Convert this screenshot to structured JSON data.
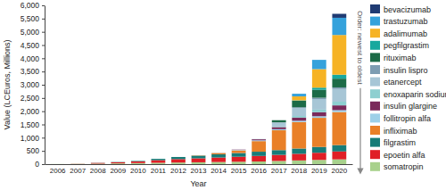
{
  "chart_data": {
    "type": "bar",
    "stacked": true,
    "grid": false,
    "legend": "right",
    "x_label": "Year",
    "y_label": "Value (LCEuros, Millions)",
    "annotation": "Order: newest to oldest",
    "categories": [
      "2006",
      "2007",
      "2008",
      "2009",
      "2010",
      "2011",
      "2012",
      "2013",
      "2014",
      "2015",
      "2016",
      "2017",
      "2018",
      "2019",
      "2020"
    ],
    "ylim": [
      0,
      6000
    ],
    "yticks": [
      0,
      500,
      {
        "value": 1000,
        "label": "1,000"
      },
      {
        "value": 1500,
        "label": "1,500"
      },
      {
        "value": 2000,
        "label": "2,000"
      },
      {
        "value": 2500,
        "label": "2,500"
      },
      {
        "value": 3000,
        "label": "3,000"
      },
      {
        "value": 3500,
        "label": "3,500"
      },
      {
        "value": 4000,
        "label": "4,000"
      },
      {
        "value": 4500,
        "label": "4,500"
      },
      {
        "value": 5000,
        "label": "5,000"
      },
      {
        "value": 5500,
        "label": "5,500"
      },
      {
        "value": 6000,
        "label": "6,000"
      }
    ],
    "series": [
      {
        "name": "bevacizumab",
        "color": "#1f3b73",
        "values": [
          0,
          0,
          0,
          0,
          0,
          0,
          0,
          0,
          0,
          0,
          0,
          0,
          0,
          0,
          150
        ]
      },
      {
        "name": "trastuzumab",
        "color": "#35a2dc",
        "values": [
          0,
          0,
          0,
          0,
          0,
          0,
          0,
          0,
          0,
          0,
          0,
          0,
          100,
          350,
          650
        ]
      },
      {
        "name": "adalimumab",
        "color": "#f6b325",
        "values": [
          0,
          0,
          0,
          0,
          0,
          0,
          0,
          0,
          0,
          0,
          0,
          0,
          150,
          700,
          1500
        ]
      },
      {
        "name": "pegfilgrastim",
        "color": "#17a89e",
        "values": [
          0,
          0,
          0,
          0,
          0,
          0,
          0,
          0,
          0,
          0,
          0,
          0,
          10,
          80,
          150
        ]
      },
      {
        "name": "rituximab",
        "color": "#1c6b47",
        "values": [
          0,
          0,
          0,
          0,
          0,
          0,
          0,
          0,
          0,
          0,
          0,
          80,
          250,
          300,
          330
        ]
      },
      {
        "name": "insulin lispro",
        "color": "#7d9db2",
        "values": [
          0,
          0,
          0,
          0,
          0,
          0,
          0,
          0,
          0,
          0,
          0,
          10,
          30,
          50,
          60
        ]
      },
      {
        "name": "etanercept",
        "color": "#a7c6d6",
        "values": [
          0,
          0,
          0,
          0,
          0,
          0,
          0,
          0,
          0,
          0,
          10,
          150,
          300,
          400,
          480
        ]
      },
      {
        "name": "enoxaparin sodium",
        "color": "#8ecfd0",
        "values": [
          0,
          0,
          0,
          0,
          0,
          0,
          0,
          0,
          0,
          0,
          0,
          20,
          60,
          100,
          140
        ]
      },
      {
        "name": "insulin glargine",
        "color": "#7a2a5a",
        "values": [
          0,
          0,
          0,
          0,
          0,
          0,
          0,
          0,
          0,
          10,
          40,
          80,
          120,
          150,
          180
        ]
      },
      {
        "name": "follitropin alfa",
        "color": "#9dd0e8",
        "values": [
          0,
          0,
          0,
          0,
          0,
          0,
          0,
          0,
          10,
          20,
          30,
          40,
          50,
          60,
          70
        ]
      },
      {
        "name": "infliximab",
        "color": "#e98028",
        "values": [
          0,
          0,
          0,
          0,
          0,
          0,
          0,
          10,
          50,
          100,
          400,
          750,
          1000,
          1100,
          1250
        ]
      },
      {
        "name": "filgrastim",
        "color": "#177c78",
        "values": [
          0,
          0,
          5,
          10,
          20,
          50,
          80,
          100,
          120,
          140,
          160,
          180,
          200,
          220,
          240
        ]
      },
      {
        "name": "epoetin alfa",
        "color": "#e01f26",
        "values": [
          0,
          5,
          25,
          40,
          60,
          100,
          130,
          150,
          170,
          190,
          210,
          230,
          250,
          270,
          300
        ]
      },
      {
        "name": "somatropin",
        "color": "#a8d18c",
        "values": [
          5,
          10,
          20,
          30,
          40,
          50,
          60,
          70,
          80,
          90,
          100,
          120,
          140,
          160,
          180
        ]
      }
    ]
  }
}
